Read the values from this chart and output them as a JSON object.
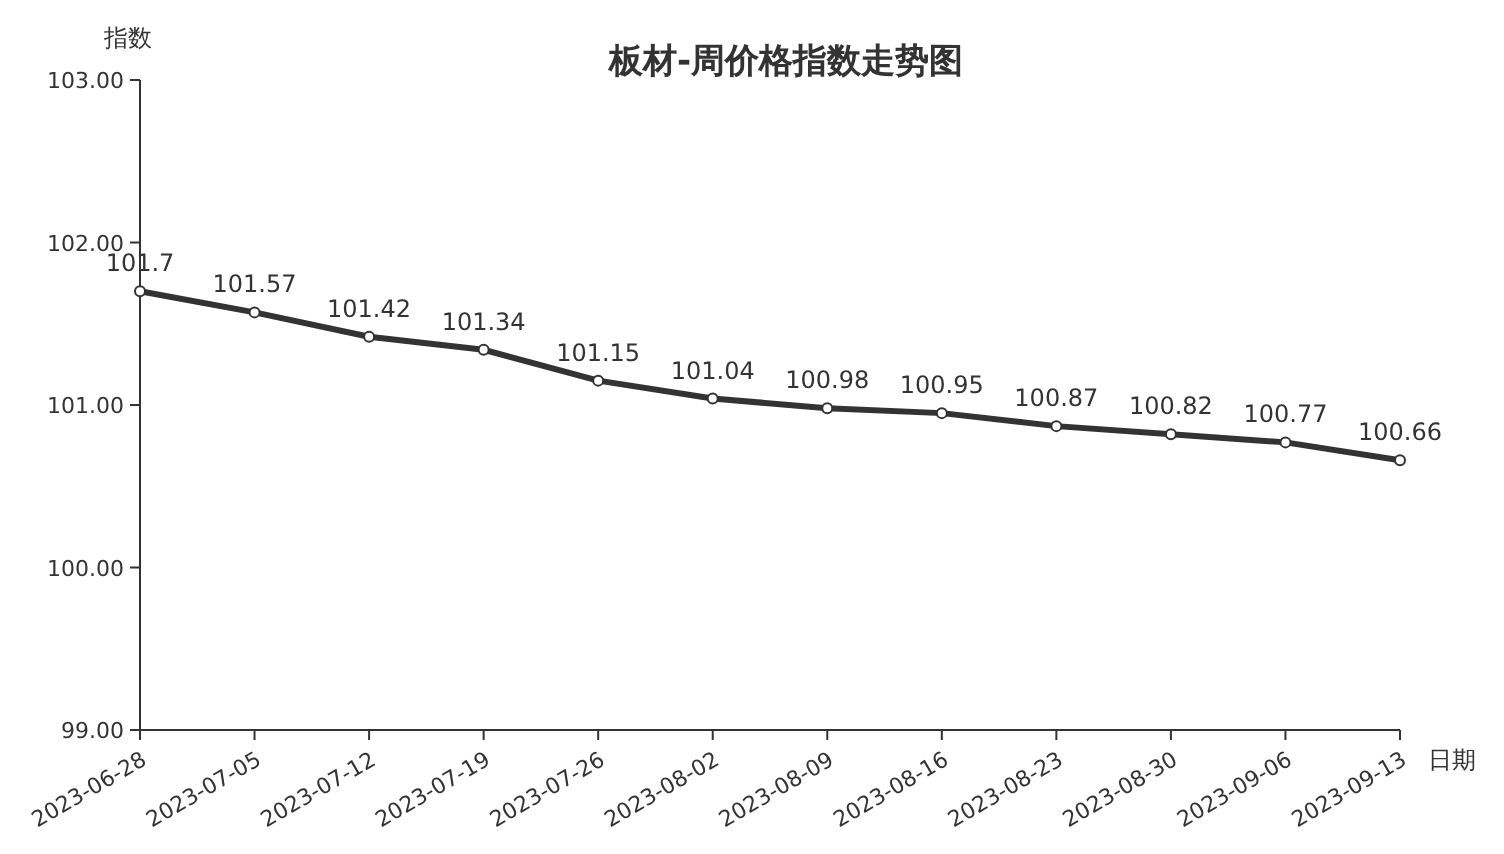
{
  "chart_data": {
    "type": "line",
    "title": "板材-周价格指数走势图",
    "xlabel": "日期",
    "ylabel": "指数",
    "categories": [
      "2023-06-28",
      "2023-07-05",
      "2023-07-12",
      "2023-07-19",
      "2023-07-26",
      "2023-08-02",
      "2023-08-09",
      "2023-08-16",
      "2023-08-23",
      "2023-08-30",
      "2023-09-06",
      "2023-09-13"
    ],
    "series": [
      {
        "color": "#333333",
        "values": [
          101.7,
          101.57,
          101.42,
          101.34,
          101.15,
          101.04,
          100.98,
          100.95,
          100.87,
          100.82,
          100.77,
          100.66
        ]
      }
    ],
    "ylim": [
      99,
      103
    ],
    "yticks": [
      {
        "value": 99,
        "label": "99.00"
      },
      {
        "value": 100,
        "label": "100.00"
      },
      {
        "value": 101,
        "label": "101.00"
      },
      {
        "value": 102,
        "label": "102.00"
      },
      {
        "value": 103,
        "label": "103.00"
      }
    ],
    "data_labels": true,
    "marker": "circle",
    "grid": false
  }
}
